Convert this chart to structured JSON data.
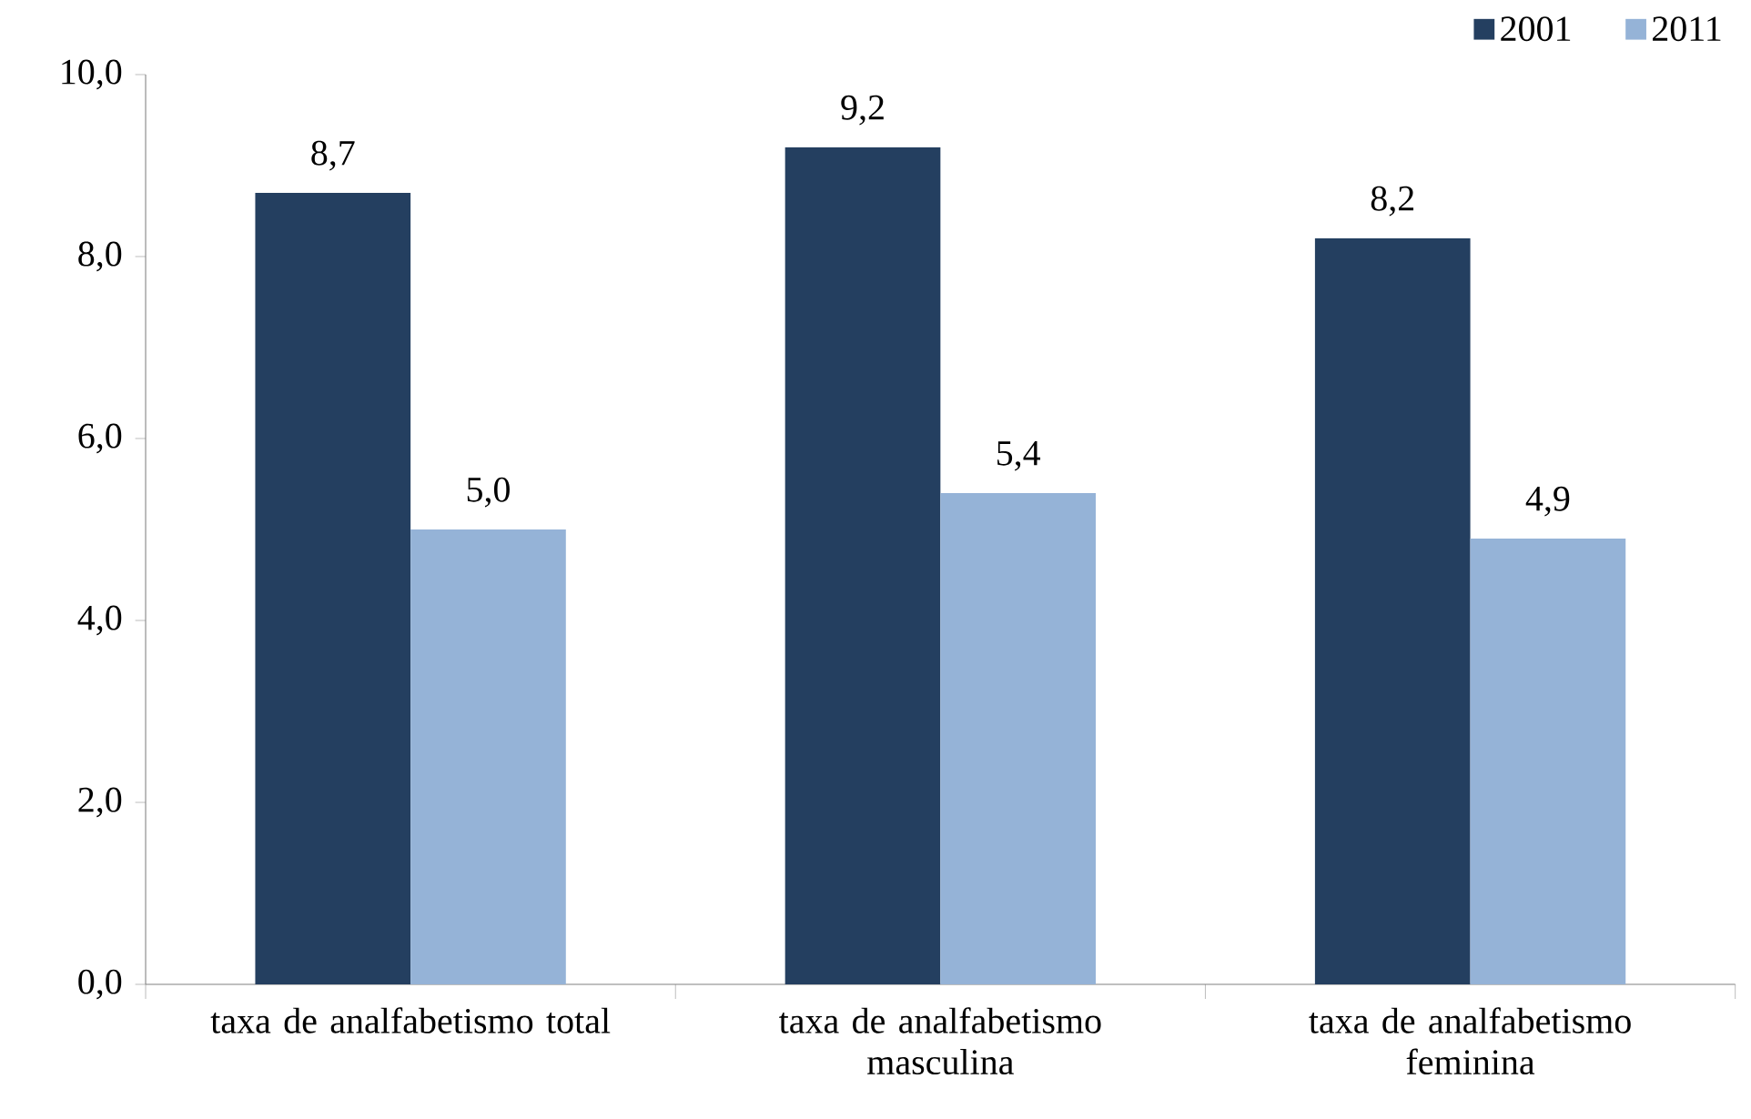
{
  "chart_data": {
    "type": "bar",
    "categories": [
      "taxa de analfabetismo total",
      "taxa de analfabetismo masculina",
      "taxa de analfabetismo feminina"
    ],
    "series": [
      {
        "name": "2001",
        "color": "#243f60",
        "values": [
          8.7,
          9.2,
          8.2
        ],
        "value_labels": [
          "8,7",
          "9,2",
          "8,2"
        ]
      },
      {
        "name": "2011",
        "color": "#95b3d7",
        "values": [
          5.0,
          5.4,
          4.9
        ],
        "value_labels": [
          "5,0",
          "5,4",
          "4,9"
        ]
      }
    ],
    "ylim": [
      0,
      10
    ],
    "yticks": [
      {
        "value": 0,
        "label": "0,0"
      },
      {
        "value": 2,
        "label": "2,0"
      },
      {
        "value": 4,
        "label": "4,0"
      },
      {
        "value": 6,
        "label": "6,0"
      },
      {
        "value": 8,
        "label": "8,0"
      },
      {
        "value": 10,
        "label": "10,0"
      }
    ],
    "grid": false,
    "legend": "top right"
  }
}
